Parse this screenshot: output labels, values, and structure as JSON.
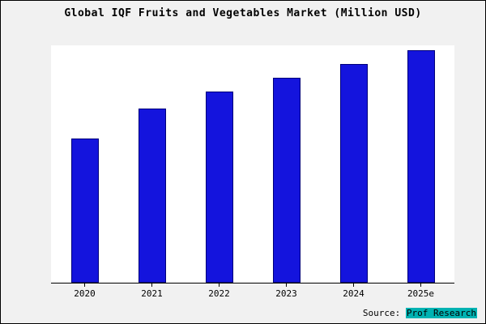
{
  "title": "Global IQF Fruits and Vegetables Market (Million USD)",
  "source": {
    "prefix": "Source: ",
    "name": "Prof Research",
    "highlight_color": "#00b2b2"
  },
  "colors": {
    "bar_fill": "#1414dd",
    "bar_border": "#00007a",
    "page_background": "#f1f1f1",
    "plot_background": "#ffffff"
  },
  "chart_data": {
    "type": "bar",
    "title": "Global IQF Fruits and Vegetables Market (Million USD)",
    "categories": [
      "2020",
      "2021",
      "2022",
      "2023",
      "2024",
      "2025e"
    ],
    "values": [
      62,
      75,
      82,
      88,
      94,
      100
    ],
    "xlabel": "",
    "ylabel": "",
    "ylim": [
      0,
      102
    ],
    "grid": false,
    "legend": false,
    "y_axis_labels_visible": false
  }
}
